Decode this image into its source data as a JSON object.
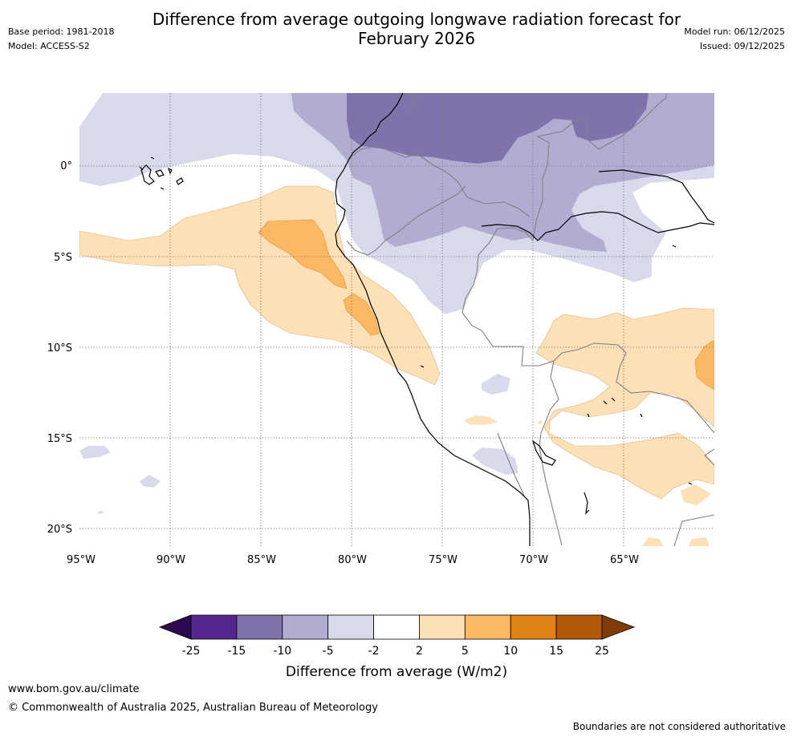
{
  "header": {
    "title_line1": "Difference from average outgoing longwave radiation forecast for",
    "title_line2": "February 2026",
    "base_period": "Base period: 1981-2018",
    "model": "Model: ACCESS-S2",
    "model_run": "Model run: 06/12/2025",
    "issued": "Issued: 09/12/2025"
  },
  "map": {
    "lat_labels": [
      "0°",
      "5°S",
      "10°S",
      "15°S",
      "20°S"
    ],
    "lon_labels": [
      "95°W",
      "90°W",
      "85°W",
      "80°W",
      "75°W",
      "70°W",
      "65°W"
    ],
    "region": "Western South America / Eastern Pacific"
  },
  "legend": {
    "title": "Difference from average (W/m2)",
    "ticks": [
      "-25",
      "-15",
      "-10",
      "-5",
      "-2",
      "2",
      "5",
      "10",
      "15",
      "25"
    ],
    "colors": [
      "#2d0a50",
      "#54278f",
      "#8073ac",
      "#b2abd2",
      "#d8daeb",
      "#ffffff",
      "#fee0b6",
      "#fdb863",
      "#e08214",
      "#b35806",
      "#7f3b08"
    ]
  },
  "footer": {
    "website": "www.bom.gov.au/climate",
    "copyright": "© Commonwealth of Australia 2025, Australian Bureau of Meteorology",
    "disclaimer": "Boundaries are not considered authoritative"
  }
}
